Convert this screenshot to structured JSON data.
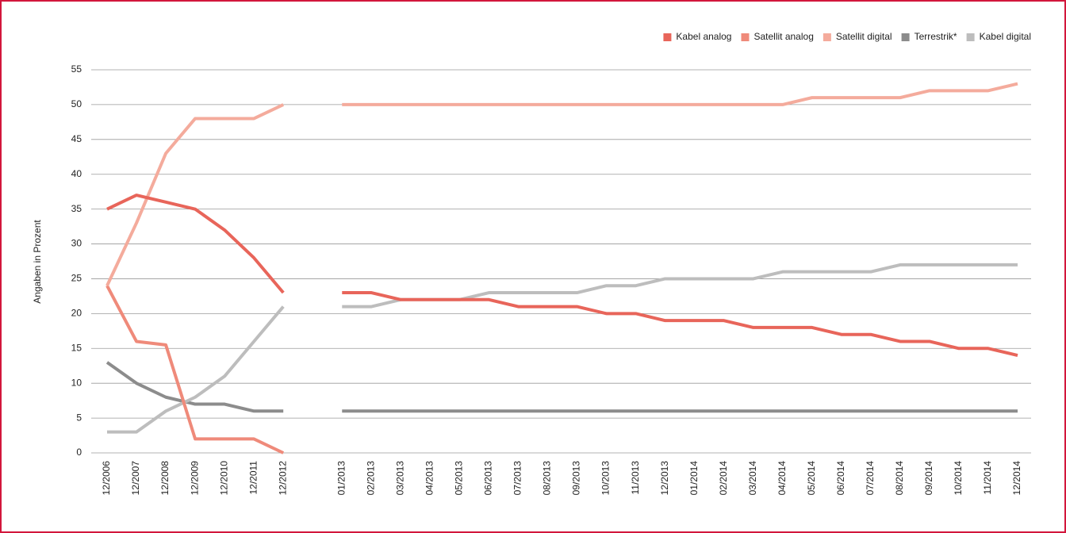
{
  "chart_data": {
    "type": "line",
    "y_label": "Angaben in Prozent",
    "categories": [
      "12/2006",
      "12/2007",
      "12/2008",
      "12/2009",
      "12/2010",
      "12/2011",
      "12/2012",
      null,
      "01/2013",
      "02/2013",
      "03/2013",
      "04/2013",
      "05/2013",
      "06/2013",
      "07/2013",
      "08/2013",
      "09/2013",
      "10/2013",
      "11/2013",
      "12/2013",
      "01/2014",
      "02/2014",
      "03/2014",
      "04/2014",
      "05/2014",
      "06/2014",
      "07/2014",
      "08/2014",
      "09/2014",
      "10/2014",
      "11/2014",
      "12/2014"
    ],
    "series": [
      {
        "name": "Kabel analog",
        "color": "#e8655a",
        "values": [
          35,
          37,
          36,
          35,
          32,
          28,
          23,
          null,
          23,
          23,
          22,
          22,
          22,
          22,
          21,
          21,
          21,
          20,
          20,
          19,
          19,
          19,
          18,
          18,
          18,
          17,
          17,
          16,
          16,
          15,
          15,
          14
        ]
      },
      {
        "name": "Satellit analog",
        "color": "#ef8a7a",
        "values": [
          24,
          16,
          15.5,
          2,
          2,
          2,
          0,
          null,
          null,
          null,
          null,
          null,
          null,
          null,
          null,
          null,
          null,
          null,
          null,
          null,
          null,
          null,
          null,
          null,
          null,
          null,
          null,
          null,
          null,
          null,
          null,
          null
        ]
      },
      {
        "name": "Satellit digital",
        "color": "#f4ab9c",
        "values": [
          24,
          33,
          43,
          48,
          48,
          48,
          50,
          null,
          50,
          50,
          50,
          50,
          50,
          50,
          50,
          50,
          50,
          50,
          50,
          50,
          50,
          50,
          50,
          50,
          51,
          51,
          51,
          51,
          52,
          52,
          52,
          53
        ]
      },
      {
        "name": "Terrestrik*",
        "color": "#8c8c8c",
        "values": [
          13,
          10,
          8,
          7,
          7,
          6,
          6,
          null,
          6,
          6,
          6,
          6,
          6,
          6,
          6,
          6,
          6,
          6,
          6,
          6,
          6,
          6,
          6,
          6,
          6,
          6,
          6,
          6,
          6,
          6,
          6,
          6
        ]
      },
      {
        "name": "Kabel digital",
        "color": "#bdbdbd",
        "values": [
          3,
          3,
          6,
          8,
          11,
          16,
          21,
          null,
          21,
          21,
          22,
          22,
          22,
          23,
          23,
          23,
          23,
          24,
          24,
          25,
          25,
          25,
          25,
          26,
          26,
          26,
          26,
          27,
          27,
          27,
          27,
          27
        ]
      }
    ],
    "ylim": [
      0,
      55
    ],
    "yticks": [
      0,
      5,
      10,
      15,
      20,
      25,
      30,
      35,
      40,
      45,
      50,
      55
    ],
    "grid": true,
    "legend": "top-right"
  }
}
